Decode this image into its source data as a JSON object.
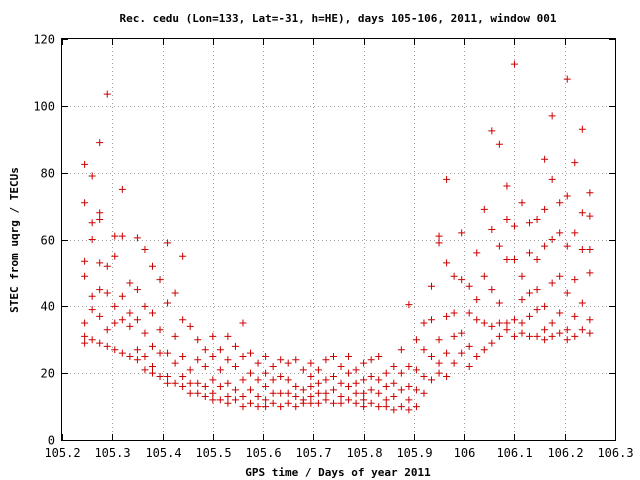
{
  "chart_data": {
    "type": "scatter",
    "title": "Rec. cedu (Lon=133, Lat=-31, h=HE), days 105-106, 2011, window 001",
    "xlabel": "GPS time / Days of year 2011",
    "ylabel": "STEC from uqrg / TECUs",
    "xlim": [
      105.2,
      106.3
    ],
    "ylim": [
      0,
      120
    ],
    "x_ticks": [
      "105.2",
      "105.3",
      "105.4",
      "105.5",
      "105.6",
      "105.7",
      "105.8",
      "105.9",
      "106",
      "106.1",
      "106.2",
      "106.3"
    ],
    "y_ticks": [
      "0",
      "20",
      "40",
      "60",
      "80",
      "100",
      "120"
    ],
    "grid": true,
    "marker": "+",
    "color": "#cc0000",
    "points": [
      [
        105.245,
        82.5
      ],
      [
        105.245,
        71
      ],
      [
        105.245,
        53.5
      ],
      [
        105.245,
        49
      ],
      [
        105.245,
        35
      ],
      [
        105.245,
        31
      ],
      [
        105.245,
        29
      ],
      [
        105.26,
        79
      ],
      [
        105.26,
        65
      ],
      [
        105.26,
        60
      ],
      [
        105.26,
        43
      ],
      [
        105.26,
        39
      ],
      [
        105.26,
        30
      ],
      [
        105.275,
        89
      ],
      [
        105.275,
        68
      ],
      [
        105.275,
        66
      ],
      [
        105.275,
        53
      ],
      [
        105.275,
        45
      ],
      [
        105.275,
        37
      ],
      [
        105.275,
        29
      ],
      [
        105.29,
        103.5
      ],
      [
        105.29,
        52
      ],
      [
        105.29,
        44
      ],
      [
        105.29,
        33
      ],
      [
        105.29,
        28
      ],
      [
        105.305,
        61
      ],
      [
        105.305,
        55
      ],
      [
        105.305,
        40
      ],
      [
        105.305,
        35
      ],
      [
        105.305,
        27
      ],
      [
        105.32,
        75
      ],
      [
        105.32,
        61
      ],
      [
        105.32,
        43
      ],
      [
        105.32,
        36
      ],
      [
        105.32,
        26
      ],
      [
        105.335,
        47
      ],
      [
        105.335,
        38
      ],
      [
        105.335,
        34
      ],
      [
        105.335,
        25
      ],
      [
        105.35,
        60.5
      ],
      [
        105.35,
        45
      ],
      [
        105.35,
        36
      ],
      [
        105.35,
        27
      ],
      [
        105.35,
        24
      ],
      [
        105.365,
        57
      ],
      [
        105.365,
        40
      ],
      [
        105.365,
        32
      ],
      [
        105.365,
        25
      ],
      [
        105.365,
        21
      ],
      [
        105.38,
        52
      ],
      [
        105.38,
        38
      ],
      [
        105.38,
        28
      ],
      [
        105.38,
        22
      ],
      [
        105.38,
        20
      ],
      [
        105.395,
        48
      ],
      [
        105.395,
        33
      ],
      [
        105.395,
        26
      ],
      [
        105.395,
        19
      ],
      [
        105.41,
        59
      ],
      [
        105.41,
        41
      ],
      [
        105.41,
        26
      ],
      [
        105.41,
        19
      ],
      [
        105.41,
        17
      ],
      [
        105.425,
        44
      ],
      [
        105.425,
        31
      ],
      [
        105.425,
        23
      ],
      [
        105.425,
        17
      ],
      [
        105.44,
        55
      ],
      [
        105.44,
        36
      ],
      [
        105.44,
        25
      ],
      [
        105.44,
        19
      ],
      [
        105.44,
        16
      ],
      [
        105.455,
        34
      ],
      [
        105.455,
        21
      ],
      [
        105.455,
        17
      ],
      [
        105.455,
        14
      ],
      [
        105.47,
        30
      ],
      [
        105.47,
        24
      ],
      [
        105.47,
        17
      ],
      [
        105.47,
        14
      ],
      [
        105.485,
        27
      ],
      [
        105.485,
        22
      ],
      [
        105.485,
        16
      ],
      [
        105.485,
        13
      ],
      [
        105.5,
        31
      ],
      [
        105.5,
        25
      ],
      [
        105.5,
        18
      ],
      [
        105.5,
        14
      ],
      [
        105.5,
        12
      ],
      [
        105.515,
        27
      ],
      [
        105.515,
        21
      ],
      [
        105.515,
        16
      ],
      [
        105.515,
        12
      ],
      [
        105.53,
        31
      ],
      [
        105.53,
        24
      ],
      [
        105.53,
        17
      ],
      [
        105.53,
        13
      ],
      [
        105.53,
        11
      ],
      [
        105.545,
        28
      ],
      [
        105.545,
        22
      ],
      [
        105.545,
        15
      ],
      [
        105.545,
        12
      ],
      [
        105.56,
        35
      ],
      [
        105.56,
        25
      ],
      [
        105.56,
        18
      ],
      [
        105.56,
        13
      ],
      [
        105.56,
        10
      ],
      [
        105.575,
        26
      ],
      [
        105.575,
        20
      ],
      [
        105.575,
        15
      ],
      [
        105.575,
        11
      ],
      [
        105.59,
        23
      ],
      [
        105.59,
        18
      ],
      [
        105.59,
        13
      ],
      [
        105.59,
        10
      ],
      [
        105.605,
        25
      ],
      [
        105.605,
        20
      ],
      [
        105.605,
        16
      ],
      [
        105.605,
        12
      ],
      [
        105.605,
        10
      ],
      [
        105.62,
        22
      ],
      [
        105.62,
        18
      ],
      [
        105.62,
        14
      ],
      [
        105.62,
        11
      ],
      [
        105.635,
        24
      ],
      [
        105.635,
        19
      ],
      [
        105.635,
        14
      ],
      [
        105.635,
        10
      ],
      [
        105.65,
        23
      ],
      [
        105.65,
        18
      ],
      [
        105.65,
        14
      ],
      [
        105.65,
        11
      ],
      [
        105.665,
        24
      ],
      [
        105.665,
        16
      ],
      [
        105.665,
        13
      ],
      [
        105.665,
        10
      ],
      [
        105.68,
        21
      ],
      [
        105.68,
        15
      ],
      [
        105.68,
        12
      ],
      [
        105.68,
        11
      ],
      [
        105.695,
        23
      ],
      [
        105.695,
        19
      ],
      [
        105.695,
        16
      ],
      [
        105.695,
        13
      ],
      [
        105.695,
        11
      ],
      [
        105.71,
        21
      ],
      [
        105.71,
        17
      ],
      [
        105.71,
        14
      ],
      [
        105.71,
        11
      ],
      [
        105.725,
        24
      ],
      [
        105.725,
        18
      ],
      [
        105.725,
        14
      ],
      [
        105.725,
        12
      ],
      [
        105.74,
        25
      ],
      [
        105.74,
        19
      ],
      [
        105.74,
        15
      ],
      [
        105.74,
        11
      ],
      [
        105.755,
        22
      ],
      [
        105.755,
        17
      ],
      [
        105.755,
        13
      ],
      [
        105.755,
        11
      ],
      [
        105.77,
        25
      ],
      [
        105.77,
        20
      ],
      [
        105.77,
        16
      ],
      [
        105.77,
        12
      ],
      [
        105.785,
        21
      ],
      [
        105.785,
        17
      ],
      [
        105.785,
        14
      ],
      [
        105.785,
        11
      ],
      [
        105.8,
        23
      ],
      [
        105.8,
        18
      ],
      [
        105.8,
        14
      ],
      [
        105.8,
        12
      ],
      [
        105.8,
        10
      ],
      [
        105.815,
        24
      ],
      [
        105.815,
        19
      ],
      [
        105.815,
        15
      ],
      [
        105.815,
        11
      ],
      [
        105.83,
        25
      ],
      [
        105.83,
        18
      ],
      [
        105.83,
        14
      ],
      [
        105.83,
        10
      ],
      [
        105.845,
        20
      ],
      [
        105.845,
        16
      ],
      [
        105.845,
        12
      ],
      [
        105.845,
        10
      ],
      [
        105.86,
        22
      ],
      [
        105.86,
        17
      ],
      [
        105.86,
        13
      ],
      [
        105.86,
        9
      ],
      [
        105.875,
        27
      ],
      [
        105.875,
        20
      ],
      [
        105.875,
        15
      ],
      [
        105.875,
        10
      ],
      [
        105.89,
        40.5
      ],
      [
        105.89,
        22
      ],
      [
        105.89,
        16
      ],
      [
        105.89,
        12
      ],
      [
        105.89,
        9
      ],
      [
        105.905,
        30
      ],
      [
        105.905,
        21
      ],
      [
        105.905,
        15
      ],
      [
        105.905,
        10
      ],
      [
        105.92,
        35
      ],
      [
        105.92,
        27
      ],
      [
        105.92,
        19
      ],
      [
        105.92,
        14
      ],
      [
        105.935,
        46
      ],
      [
        105.935,
        36
      ],
      [
        105.935,
        25
      ],
      [
        105.935,
        18
      ],
      [
        105.95,
        61
      ],
      [
        105.95,
        59
      ],
      [
        105.95,
        30
      ],
      [
        105.95,
        23
      ],
      [
        105.95,
        20
      ],
      [
        105.965,
        78
      ],
      [
        105.965,
        53
      ],
      [
        105.965,
        37
      ],
      [
        105.965,
        26
      ],
      [
        105.965,
        19
      ],
      [
        105.98,
        49
      ],
      [
        105.98,
        38
      ],
      [
        105.98,
        31
      ],
      [
        105.98,
        23
      ],
      [
        105.995,
        62
      ],
      [
        105.995,
        48
      ],
      [
        105.995,
        32
      ],
      [
        105.995,
        26
      ],
      [
        106.01,
        46
      ],
      [
        106.01,
        38
      ],
      [
        106.01,
        28
      ],
      [
        106.01,
        22
      ],
      [
        106.025,
        56
      ],
      [
        106.025,
        42
      ],
      [
        106.025,
        36
      ],
      [
        106.025,
        25
      ],
      [
        106.04,
        69
      ],
      [
        106.04,
        49
      ],
      [
        106.04,
        35
      ],
      [
        106.04,
        27
      ],
      [
        106.055,
        92.5
      ],
      [
        106.055,
        63
      ],
      [
        106.055,
        45
      ],
      [
        106.055,
        34
      ],
      [
        106.055,
        29
      ],
      [
        106.07,
        88.5
      ],
      [
        106.07,
        58
      ],
      [
        106.07,
        41
      ],
      [
        106.07,
        35
      ],
      [
        106.07,
        31
      ],
      [
        106.085,
        76
      ],
      [
        106.085,
        66
      ],
      [
        106.085,
        54
      ],
      [
        106.085,
        35
      ],
      [
        106.085,
        33
      ],
      [
        106.1,
        112.5
      ],
      [
        106.1,
        64
      ],
      [
        106.1,
        54
      ],
      [
        106.1,
        36
      ],
      [
        106.1,
        31
      ],
      [
        106.115,
        71
      ],
      [
        106.115,
        49
      ],
      [
        106.115,
        42
      ],
      [
        106.115,
        35
      ],
      [
        106.115,
        32
      ],
      [
        106.13,
        65
      ],
      [
        106.13,
        56
      ],
      [
        106.13,
        44
      ],
      [
        106.13,
        37
      ],
      [
        106.13,
        31
      ],
      [
        106.145,
        66
      ],
      [
        106.145,
        54
      ],
      [
        106.145,
        45
      ],
      [
        106.145,
        39
      ],
      [
        106.145,
        31
      ],
      [
        106.16,
        84
      ],
      [
        106.16,
        69
      ],
      [
        106.16,
        58
      ],
      [
        106.16,
        40
      ],
      [
        106.16,
        33
      ],
      [
        106.16,
        30
      ],
      [
        106.175,
        97
      ],
      [
        106.175,
        78
      ],
      [
        106.175,
        60
      ],
      [
        106.175,
        47
      ],
      [
        106.175,
        35
      ],
      [
        106.175,
        31
      ],
      [
        106.19,
        71
      ],
      [
        106.19,
        62
      ],
      [
        106.19,
        49
      ],
      [
        106.19,
        38
      ],
      [
        106.19,
        32
      ],
      [
        106.205,
        108
      ],
      [
        106.205,
        73
      ],
      [
        106.205,
        58
      ],
      [
        106.205,
        44
      ],
      [
        106.205,
        33
      ],
      [
        106.205,
        30
      ],
      [
        106.22,
        83
      ],
      [
        106.22,
        62
      ],
      [
        106.22,
        48
      ],
      [
        106.22,
        37
      ],
      [
        106.22,
        31
      ],
      [
        106.235,
        93
      ],
      [
        106.235,
        68
      ],
      [
        106.235,
        57
      ],
      [
        106.235,
        41
      ],
      [
        106.235,
        33
      ],
      [
        106.25,
        74
      ],
      [
        106.25,
        67
      ],
      [
        106.25,
        57
      ],
      [
        106.25,
        50
      ],
      [
        106.25,
        36
      ],
      [
        106.25,
        32
      ]
    ]
  }
}
